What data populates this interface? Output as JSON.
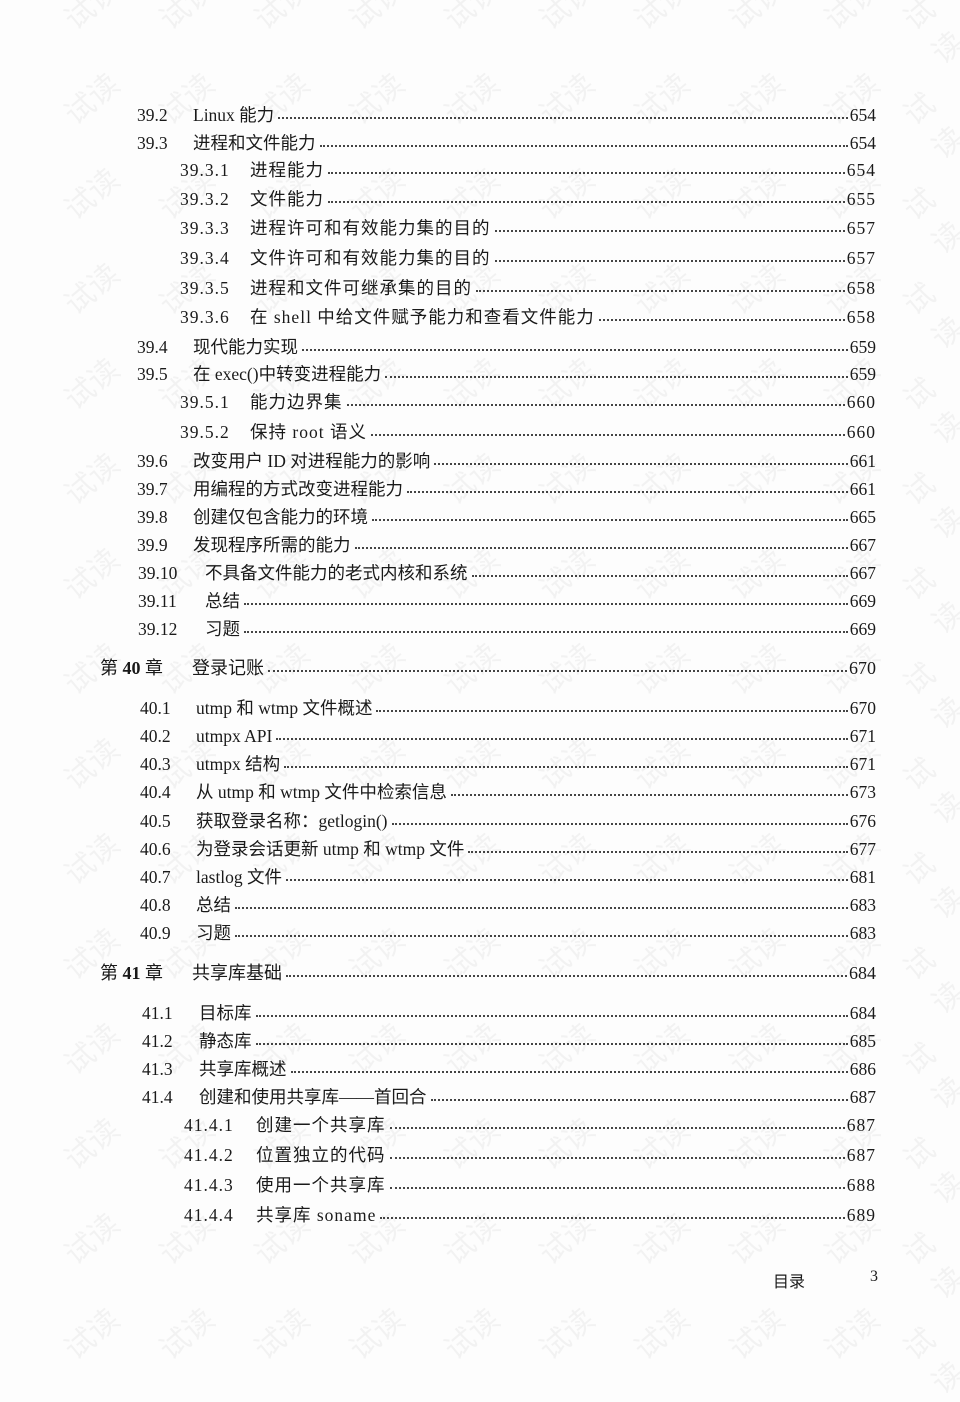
{
  "entries": [
    {
      "type": "section",
      "num": "39.2",
      "title": "Linux 能力",
      "page": "654"
    },
    {
      "type": "section",
      "num": "39.3",
      "title": "进程和文件能力",
      "page": "654"
    },
    {
      "type": "sub",
      "num": "39.3.1",
      "title": "进程能力",
      "page": "654"
    },
    {
      "type": "sub",
      "num": "39.3.2",
      "title": "文件能力",
      "page": "655"
    },
    {
      "type": "sub",
      "num": "39.3.3",
      "title": "进程许可和有效能力集的目的",
      "page": "657"
    },
    {
      "type": "sub",
      "num": "39.3.4",
      "title": "文件许可和有效能力集的目的",
      "page": "657"
    },
    {
      "type": "sub",
      "num": "39.3.5",
      "title": "进程和文件可继承集的目的",
      "page": "658"
    },
    {
      "type": "sub",
      "num": "39.3.6",
      "title": "在 shell 中给文件赋予能力和查看文件能力",
      "page": "658"
    },
    {
      "type": "section",
      "num": "39.4",
      "title": "现代能力实现",
      "page": "659"
    },
    {
      "type": "section",
      "num": "39.5",
      "title": "在 exec()中转变进程能力",
      "page": "659"
    },
    {
      "type": "sub",
      "num": "39.5.1",
      "title": "能力边界集",
      "page": "660"
    },
    {
      "type": "sub",
      "num": "39.5.2",
      "title": "保持 root 语义",
      "page": "660"
    },
    {
      "type": "section",
      "num": "39.6",
      "title": "改变用户 ID 对进程能力的影响",
      "page": "661"
    },
    {
      "type": "section",
      "num": "39.7",
      "title": "用编程的方式改变进程能力",
      "page": "661"
    },
    {
      "type": "section",
      "num": "39.8",
      "title": "创建仅包含能力的环境",
      "page": "665"
    },
    {
      "type": "section",
      "num": "39.9",
      "title": "发现程序所需的能力",
      "page": "667"
    },
    {
      "type": "section2",
      "num": "39.10",
      "title": "不具备文件能力的老式内核和系统",
      "page": "667"
    },
    {
      "type": "section2",
      "num": "39.11",
      "title": "总结",
      "page": "669"
    },
    {
      "type": "section2",
      "num": "39.12",
      "title": "习题",
      "page": "669"
    },
    {
      "type": "chapter",
      "num_prefix": "第",
      "num": "40",
      "num_suffix": "章",
      "title": "登录记账",
      "page": "670"
    },
    {
      "type": "section40",
      "num": "40.1",
      "title": "utmp 和 wtmp 文件概述",
      "page": "670"
    },
    {
      "type": "section40",
      "num": "40.2",
      "title": "utmpx API",
      "page": "671"
    },
    {
      "type": "section40",
      "num": "40.3",
      "title": "utmpx 结构",
      "page": "671"
    },
    {
      "type": "section40",
      "num": "40.4",
      "title": "从 utmp 和 wtmp 文件中检索信息",
      "page": "673"
    },
    {
      "type": "section40",
      "num": "40.5",
      "title": "获取登录名称：getlogin()",
      "page": "676"
    },
    {
      "type": "section40",
      "num": "40.6",
      "title": "为登录会话更新 utmp 和 wtmp 文件",
      "page": "677"
    },
    {
      "type": "section40",
      "num": "40.7",
      "title": "lastlog 文件",
      "page": "681"
    },
    {
      "type": "section40",
      "num": "40.8",
      "title": "总结",
      "page": "683"
    },
    {
      "type": "section40",
      "num": "40.9",
      "title": "习题",
      "page": "683"
    },
    {
      "type": "chapter",
      "num_prefix": "第",
      "num": "41",
      "num_suffix": "章",
      "title": "共享库基础",
      "page": "684"
    },
    {
      "type": "section41",
      "num": "41.1",
      "title": "目标库",
      "page": "684"
    },
    {
      "type": "section41",
      "num": "41.2",
      "title": "静态库",
      "page": "685"
    },
    {
      "type": "section41",
      "num": "41.3",
      "title": "共享库概述",
      "page": "686"
    },
    {
      "type": "section41",
      "num": "41.4",
      "title": "创建和使用共享库——首回合",
      "page": "687"
    },
    {
      "type": "sub41",
      "num": "41.4.1",
      "title": "创建一个共享库",
      "page": "687"
    },
    {
      "type": "sub41",
      "num": "41.4.2",
      "title": "位置独立的代码",
      "page": "687"
    },
    {
      "type": "sub41",
      "num": "41.4.3",
      "title": "使用一个共享库",
      "page": "688"
    },
    {
      "type": "sub41",
      "num": "41.4.4",
      "title": "共享库 soname",
      "page": "689"
    }
  ],
  "footer": {
    "label": "目录",
    "page_number": "3"
  },
  "watermark": "试读"
}
